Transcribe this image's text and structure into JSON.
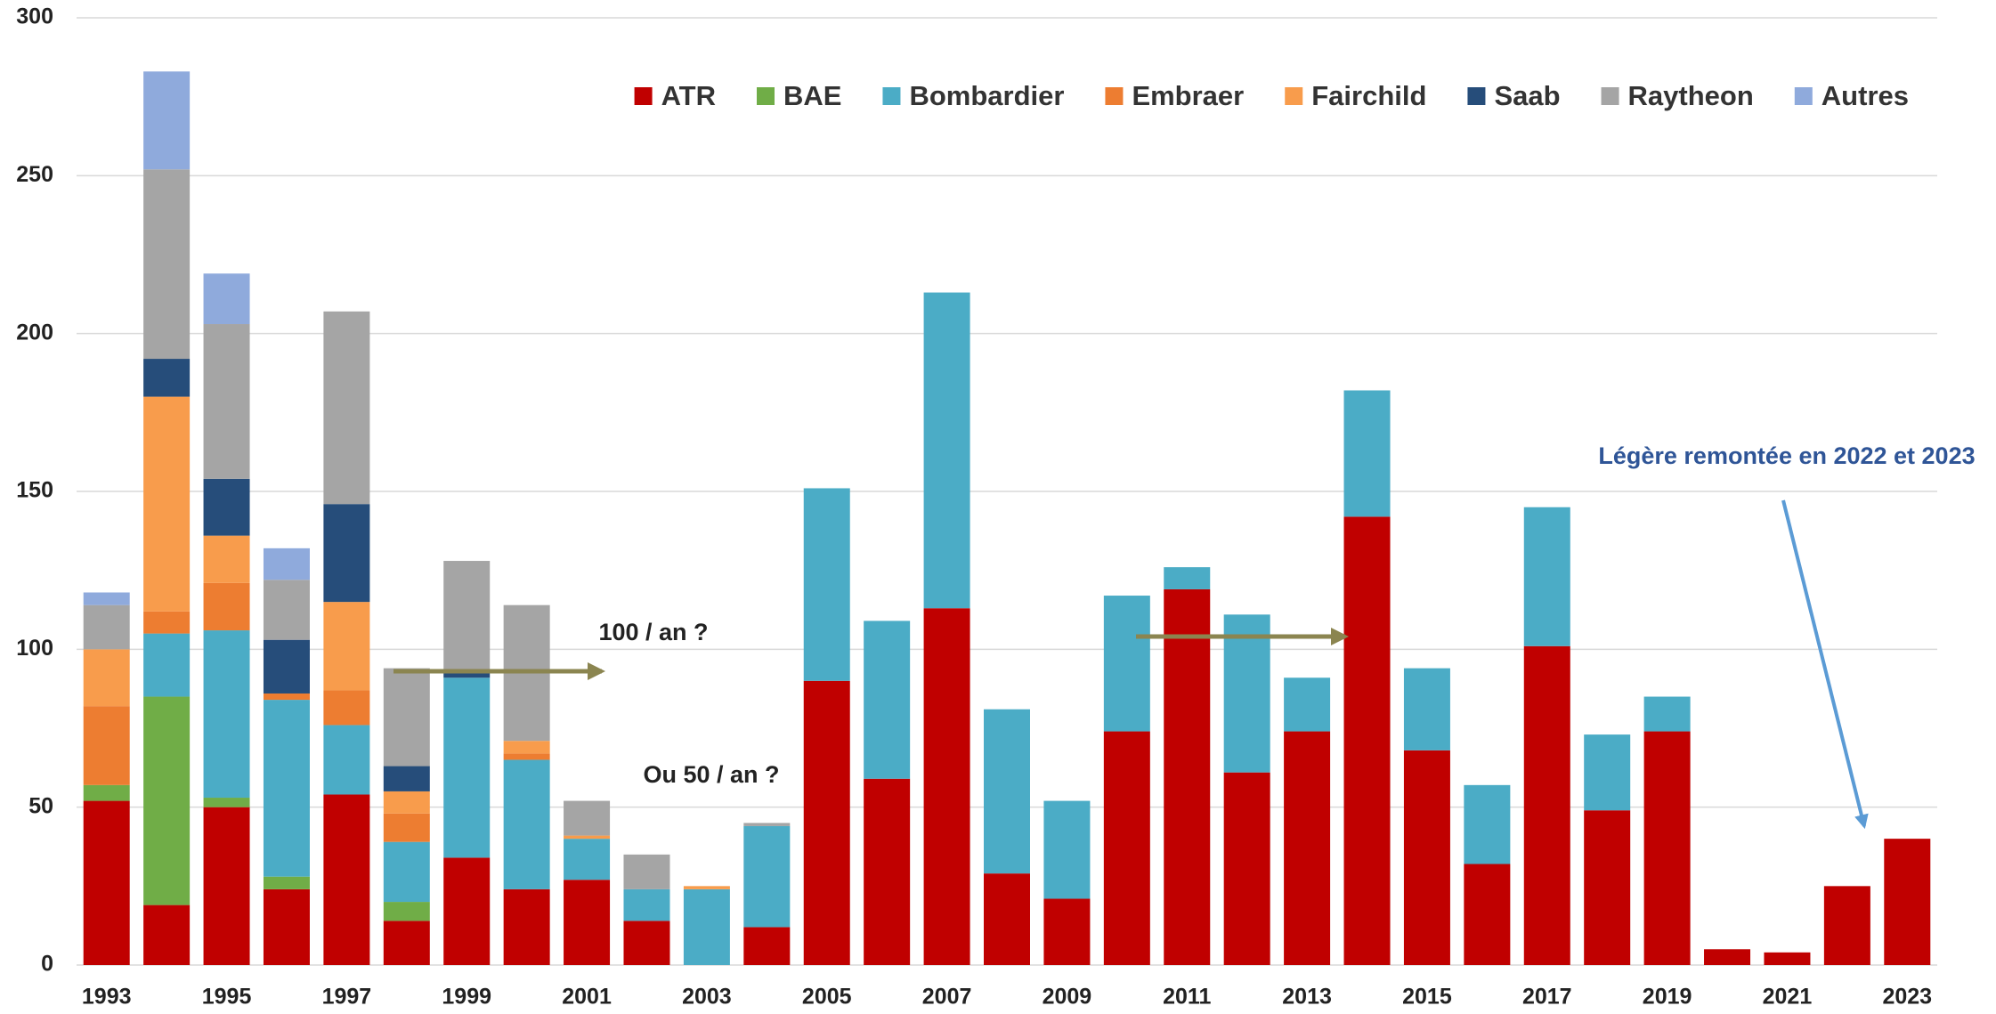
{
  "chart_data": {
    "type": "stacked_bar",
    "categories": [
      "1993",
      null,
      "1995",
      null,
      "1997",
      null,
      "1999",
      null,
      "2001",
      null,
      "2003",
      null,
      "2005",
      null,
      "2007",
      null,
      "2009",
      null,
      "2011",
      null,
      "2013",
      null,
      "2015",
      null,
      "2017",
      null,
      "2019",
      null,
      "2021",
      null,
      "2023"
    ],
    "series": [
      {
        "name": "ATR",
        "color": "#c00000",
        "values": [
          52,
          19,
          50,
          24,
          54,
          14,
          34,
          24,
          27,
          14,
          0,
          12,
          90,
          59,
          113,
          29,
          21,
          74,
          119,
          61,
          74,
          142,
          68,
          32,
          101,
          49,
          74,
          5,
          4,
          25,
          40
        ]
      },
      {
        "name": "BAE",
        "color": "#70ad47",
        "values": [
          5,
          66,
          3,
          4,
          0,
          6,
          0,
          0,
          0,
          0,
          0,
          0,
          0,
          0,
          0,
          0,
          0,
          0,
          0,
          0,
          0,
          0,
          0,
          0,
          0,
          0,
          0,
          0,
          0,
          0,
          0
        ]
      },
      {
        "name": "Bombardier",
        "color": "#4bacc6",
        "values": [
          0,
          20,
          53,
          56,
          22,
          19,
          57,
          41,
          13,
          10,
          24,
          32,
          61,
          50,
          100,
          52,
          31,
          43,
          7,
          50,
          17,
          40,
          26,
          25,
          44,
          24,
          11,
          0,
          0,
          0,
          0
        ]
      },
      {
        "name": "Embraer",
        "color": "#ed7d31",
        "values": [
          25,
          7,
          15,
          2,
          11,
          9,
          0,
          2,
          0,
          0,
          0,
          0,
          0,
          0,
          0,
          0,
          0,
          0,
          0,
          0,
          0,
          0,
          0,
          0,
          0,
          0,
          0,
          0,
          0,
          0,
          0
        ]
      },
      {
        "name": "Fairchild",
        "color": "#f89c4c",
        "values": [
          18,
          68,
          15,
          0,
          28,
          7,
          0,
          4,
          1,
          0,
          1,
          0,
          0,
          0,
          0,
          0,
          0,
          0,
          0,
          0,
          0,
          0,
          0,
          0,
          0,
          0,
          0,
          0,
          0,
          0,
          0
        ]
      },
      {
        "name": "Saab",
        "color": "#264d7a",
        "values": [
          0,
          12,
          18,
          17,
          31,
          8,
          2,
          0,
          0,
          0,
          0,
          0,
          0,
          0,
          0,
          0,
          0,
          0,
          0,
          0,
          0,
          0,
          0,
          0,
          0,
          0,
          0,
          0,
          0,
          0,
          0
        ]
      },
      {
        "name": "Raytheon",
        "color": "#a5a5a5",
        "values": [
          14,
          60,
          49,
          19,
          61,
          31,
          35,
          43,
          11,
          11,
          0,
          1,
          0,
          0,
          0,
          0,
          0,
          0,
          0,
          0,
          0,
          0,
          0,
          0,
          0,
          0,
          0,
          0,
          0,
          0,
          0
        ]
      },
      {
        "name": "Autres",
        "color": "#8faadc",
        "values": [
          4,
          31,
          16,
          10,
          0,
          0,
          0,
          0,
          0,
          0,
          0,
          0,
          0,
          0,
          0,
          0,
          0,
          0,
          0,
          0,
          0,
          0,
          0,
          0,
          0,
          0,
          0,
          0,
          0,
          0,
          0
        ]
      }
    ],
    "ylim": [
      0,
      300
    ],
    "yticks": [
      0,
      50,
      100,
      150,
      200,
      250,
      300
    ],
    "grid": true,
    "legend": "top-right",
    "annotations": [
      "100 / an ?",
      "Ou 50 / an ?",
      "Légère remontée en 2022 et 2023"
    ]
  }
}
